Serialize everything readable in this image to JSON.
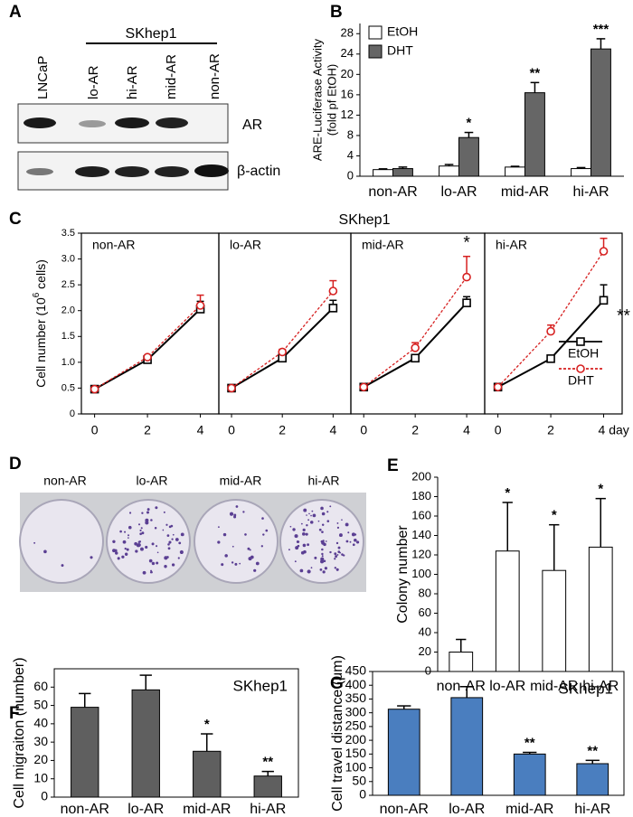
{
  "panel_a": {
    "panel": "A",
    "group": "SKhep1",
    "lanes": [
      "LNCaP",
      "lo-AR",
      "hi-AR",
      "mid-AR",
      "non-AR"
    ],
    "bands": [
      "AR",
      "β-actin"
    ]
  },
  "panel_d": {
    "panel": "D",
    "labels": [
      "non-AR",
      "lo-AR",
      "mid-AR",
      "hi-AR"
    ]
  },
  "chart_data": [
    {
      "type": "bar",
      "panel": "B",
      "ylabel": [
        "ARE-Luciferase Activity",
        "(fold pf EtOH)"
      ],
      "categories": [
        "non-AR",
        "lo-AR",
        "mid-AR",
        "hi-AR"
      ],
      "series": [
        {
          "name": "EtOH",
          "color": "#ffffff",
          "values": [
            1.3,
            2.0,
            1.8,
            1.5
          ],
          "errors": [
            0.15,
            0.3,
            0.15,
            0.2
          ]
        },
        {
          "name": "DHT",
          "color": "#666666",
          "values": [
            1.5,
            7.6,
            16.4,
            25.0
          ],
          "errors": [
            0.3,
            1.0,
            2.0,
            2.0
          ]
        }
      ],
      "ylim": [
        0,
        30
      ],
      "yticks": [
        0,
        4,
        8,
        12,
        16,
        20,
        24,
        28
      ],
      "legend": "upper left",
      "annotations": [
        {
          "category": "lo-AR",
          "series": "DHT",
          "text": "*"
        },
        {
          "category": "mid-AR",
          "series": "DHT",
          "text": "**"
        },
        {
          "category": "hi-AR",
          "series": "DHT",
          "text": "***"
        }
      ]
    },
    {
      "type": "line",
      "panel": "C",
      "title": "SKhep1",
      "ylabel": {
        "text": "Cell number (10",
        "sup": "6",
        "end": " cells)"
      },
      "x": [
        0,
        2,
        4
      ],
      "xlim": [
        -0.5,
        4.7
      ],
      "ylim": [
        0,
        3.5
      ],
      "yticks": [
        0,
        0.5,
        {
          "value": 1,
          "label": "1.0"
        },
        1.5,
        {
          "value": 2,
          "label": "2.0"
        },
        2.5,
        {
          "value": 3,
          "label": "3.0"
        },
        3.5
      ],
      "series": [
        {
          "name": "EtOH",
          "color": "#000000",
          "marker": "square"
        },
        {
          "name": "DHT",
          "color": "#d62020",
          "marker": "circle",
          "dashed": true
        }
      ],
      "legend": "lower right",
      "subplots": [
        {
          "label": "non-AR",
          "xticks": [
            0,
            2,
            4
          ],
          "values": [
            [
              0.48,
              1.05,
              2.03
            ],
            [
              0.48,
              1.1,
              2.1
            ]
          ],
          "errors": [
            [
              0.02,
              0.03,
              0.15
            ],
            [
              0.02,
              0.03,
              0.2
            ]
          ]
        },
        {
          "label": "lo-AR",
          "xticks": [
            0,
            2,
            4
          ],
          "values": [
            [
              0.5,
              1.08,
              2.05
            ],
            [
              0.5,
              1.2,
              2.38
            ]
          ],
          "errors": [
            [
              0.02,
              0.05,
              0.15
            ],
            [
              0.02,
              0.05,
              0.2
            ]
          ]
        },
        {
          "label": "mid-AR",
          "xticks": [
            0,
            2,
            4
          ],
          "values": [
            [
              0.52,
              1.08,
              2.15
            ],
            [
              0.52,
              1.28,
              2.65
            ]
          ],
          "errors": [
            [
              0.02,
              0.05,
              0.12
            ],
            [
              0.02,
              0.1,
              0.4
            ]
          ],
          "annotation": {
            "series": "DHT",
            "text": "*"
          }
        },
        {
          "label": "hi-AR",
          "xticks": [
            0,
            2,
            {
              "value": 4,
              "label": "4 day"
            }
          ],
          "values": [
            [
              0.52,
              1.07,
              2.2
            ],
            [
              0.52,
              1.6,
              3.15
            ]
          ],
          "errors": [
            [
              0.02,
              0.05,
              0.3
            ],
            [
              0.02,
              0.12,
              0.25
            ]
          ],
          "annotation": {
            "series": "EtOH",
            "text": "**"
          }
        }
      ]
    },
    {
      "type": "bar",
      "panel": "E",
      "ylabel": "Colony number",
      "categories": [
        "non-AR",
        "lo-AR",
        "mid-AR",
        "hi-AR"
      ],
      "series": [
        {
          "color": "#ffffff",
          "values": [
            20,
            124,
            104,
            128
          ],
          "errors": [
            13,
            50,
            47,
            50
          ]
        }
      ],
      "ylim": [
        0,
        200
      ],
      "yticks": [
        0,
        20,
        40,
        60,
        80,
        100,
        120,
        140,
        160,
        180,
        200
      ],
      "annotations": [
        {
          "category": "lo-AR",
          "text": "*"
        },
        {
          "category": "mid-AR",
          "text": "*"
        },
        {
          "category": "hi-AR",
          "text": "*"
        }
      ]
    },
    {
      "type": "bar",
      "panel": "F",
      "title": "SKhep1",
      "ylabel": "Cell migraiton (number)",
      "categories": [
        "non-AR",
        "lo-AR",
        "mid-AR",
        "hi-AR"
      ],
      "series": [
        {
          "color": "#5f5f5f",
          "values": [
            49,
            58.5,
            25,
            11.5
          ],
          "errors": [
            7.5,
            8,
            9.5,
            2.5
          ]
        }
      ],
      "ylim": [
        0,
        70
      ],
      "yticks": [
        0,
        10,
        20,
        30,
        40,
        50,
        60
      ],
      "annotations": [
        {
          "category": "mid-AR",
          "text": "*"
        },
        {
          "category": "hi-AR",
          "text": "**"
        }
      ]
    },
    {
      "type": "bar",
      "panel": "G",
      "title": "SKhep1",
      "ylabel": "Cell travel distance (μm)",
      "categories": [
        "non-AR",
        "lo-AR",
        "mid-AR",
        "hi-AR"
      ],
      "series": [
        {
          "color": "#4a7ebf",
          "values": [
            313,
            355,
            150,
            115
          ],
          "errors": [
            12,
            40,
            6,
            12
          ]
        }
      ],
      "ylim": [
        0,
        450
      ],
      "yticks": [
        0,
        50,
        100,
        150,
        200,
        250,
        300,
        350,
        400,
        450
      ],
      "annotations": [
        {
          "category": "mid-AR",
          "text": "**"
        },
        {
          "category": "hi-AR",
          "text": "**"
        }
      ]
    }
  ]
}
